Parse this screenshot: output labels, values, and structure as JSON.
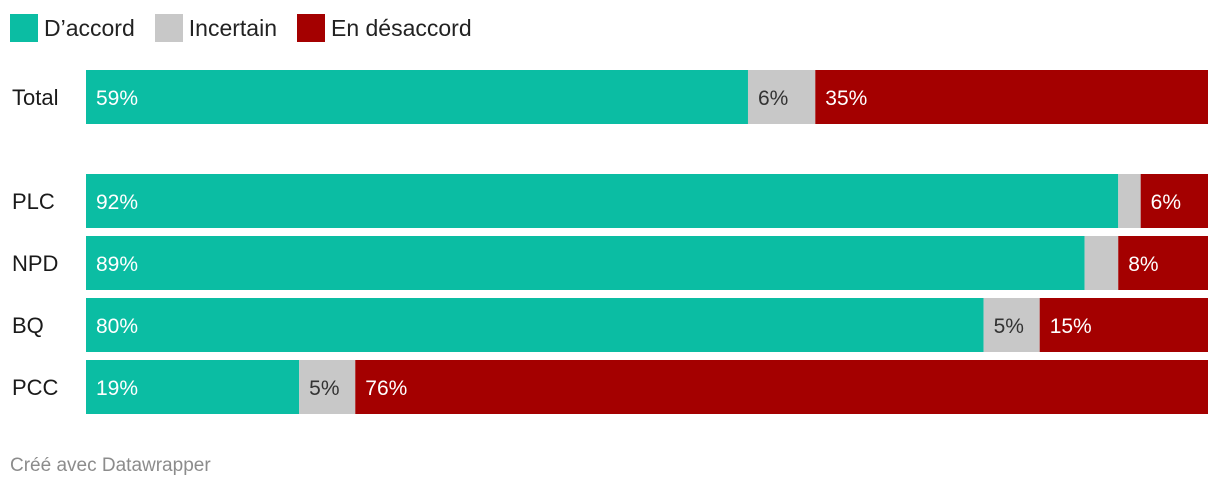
{
  "chart_data": {
    "type": "bar",
    "orientation": "horizontal",
    "stacked": true,
    "normalized_100": true,
    "legend_position": "top-left",
    "series": [
      {
        "name": "D’accord",
        "color": "#0bbda3"
      },
      {
        "name": "Incertain",
        "color": "#c8c8c8"
      },
      {
        "name": "En désaccord",
        "color": "#a40000"
      }
    ],
    "rows": [
      {
        "label": "Total",
        "values": [
          59,
          6,
          35
        ],
        "labels": [
          "59%",
          "6%",
          "35%"
        ]
      },
      {
        "label": "PLC",
        "values": [
          92,
          2,
          6
        ],
        "labels": [
          "92%",
          "",
          "6%"
        ]
      },
      {
        "label": "NPD",
        "values": [
          89,
          3,
          8
        ],
        "labels": [
          "89%",
          "",
          "8%"
        ]
      },
      {
        "label": "BQ",
        "values": [
          80,
          5,
          15
        ],
        "labels": [
          "80%",
          "5%",
          "15%"
        ]
      },
      {
        "label": "PCC",
        "values": [
          19,
          5,
          76
        ],
        "labels": [
          "19%",
          "5%",
          "76%"
        ]
      }
    ]
  },
  "footer": "Créé avec Datawrapper"
}
